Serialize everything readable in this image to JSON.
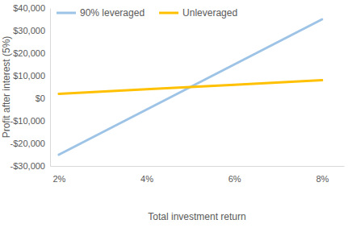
{
  "chart_data": {
    "type": "line",
    "x_label": "Total investment return",
    "y_label": "Profit after interest (5%)",
    "x": [
      2,
      4,
      6,
      8
    ],
    "series": [
      {
        "name": "90% leveraged",
        "color": "#9dc3e6",
        "values": [
          -25000,
          -5000,
          15000,
          35000
        ]
      },
      {
        "name": "Unleveraged",
        "color": "#ffc000",
        "values": [
          2000,
          4000,
          6000,
          8000
        ]
      }
    ],
    "xlim": [
      1.8,
      8.5
    ],
    "xticks": [
      {
        "value": 2,
        "label": "2%"
      },
      {
        "value": 4,
        "label": "4%"
      },
      {
        "value": 6,
        "label": "6%"
      },
      {
        "value": 8,
        "label": "8%"
      }
    ],
    "ylim": [
      -30000,
      40000
    ],
    "yticks": [
      {
        "value": -30000,
        "label": "-$30,000"
      },
      {
        "value": -20000,
        "label": "-$20,000"
      },
      {
        "value": -10000,
        "label": "-$10,000"
      },
      {
        "value": 0,
        "label": "$0"
      },
      {
        "value": 10000,
        "label": "$10,000"
      },
      {
        "value": 20000,
        "label": "$20,000"
      },
      {
        "value": 30000,
        "label": "$30,000"
      },
      {
        "value": 40000,
        "label": "$40,000"
      }
    ],
    "grid": false,
    "legend": "top-left"
  }
}
